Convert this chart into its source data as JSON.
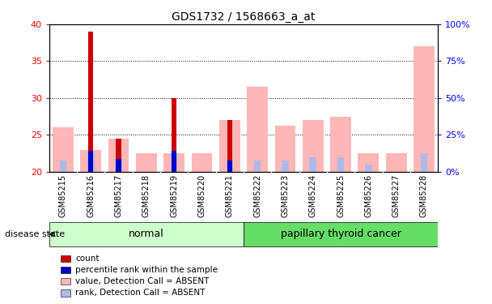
{
  "title": "GDS1732 / 1568663_a_at",
  "samples": [
    "GSM85215",
    "GSM85216",
    "GSM85217",
    "GSM85218",
    "GSM85219",
    "GSM85220",
    "GSM85221",
    "GSM85222",
    "GSM85223",
    "GSM85224",
    "GSM85225",
    "GSM85226",
    "GSM85227",
    "GSM85228"
  ],
  "value_absent": [
    26.0,
    23.0,
    24.5,
    22.5,
    22.5,
    22.5,
    27.0,
    31.5,
    26.3,
    27.0,
    27.5,
    22.5,
    22.5,
    37.0
  ],
  "rank_absent": [
    21.5,
    22.5,
    21.5,
    null,
    22.5,
    null,
    21.5,
    21.5,
    21.5,
    22.0,
    22.0,
    21.0,
    null,
    22.5
  ],
  "count_red": [
    null,
    39.0,
    24.5,
    null,
    30.0,
    null,
    27.0,
    null,
    null,
    null,
    null,
    null,
    null,
    null
  ],
  "percentile_blue": [
    null,
    22.8,
    21.7,
    null,
    22.8,
    null,
    21.5,
    null,
    null,
    null,
    null,
    null,
    null,
    null
  ],
  "ylim_left": [
    20,
    40
  ],
  "ylim_right": [
    0,
    100
  ],
  "yticks_left": [
    20,
    25,
    30,
    35,
    40
  ],
  "yticks_right": [
    0,
    25,
    50,
    75,
    100
  ],
  "ytick_labels_right": [
    "0%",
    "25%",
    "50%",
    "75%",
    "100%"
  ],
  "normal_indices": [
    0,
    1,
    2,
    3,
    4,
    5,
    6
  ],
  "cancer_indices": [
    7,
    8,
    9,
    10,
    11,
    12,
    13
  ],
  "normal_label": "normal",
  "cancer_label": "papillary thyroid cancer",
  "disease_state_label": "disease state",
  "legend_items": [
    {
      "label": "count",
      "color": "#cc0000"
    },
    {
      "label": "percentile rank within the sample",
      "color": "#0000cc"
    },
    {
      "label": "value, Detection Call = ABSENT",
      "color": "#ffb6b6"
    },
    {
      "label": "rank, Detection Call = ABSENT",
      "color": "#b0b8e8"
    }
  ],
  "normal_bg": "#ccffcc",
  "cancer_bg": "#66dd66",
  "xtick_bg": "#cccccc",
  "bg_color": "#ffffff"
}
